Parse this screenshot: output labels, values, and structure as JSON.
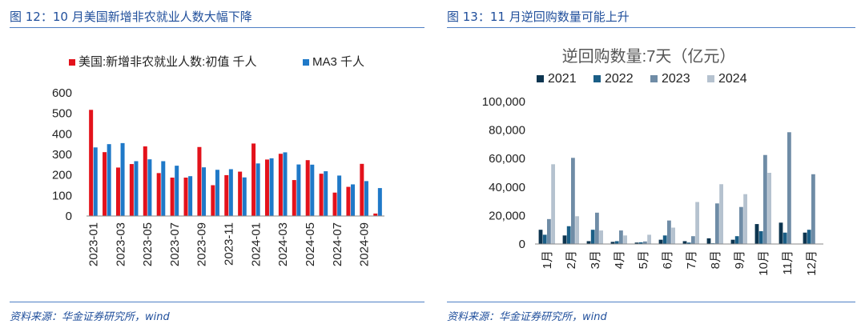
{
  "charts": [
    {
      "heading": "图 12：10 月美国新增非农就业人数大幅下降",
      "source": "资料来源：华金证券研究所，wind"
    },
    {
      "heading": "图 13：11 月逆回购数量可能上升",
      "source": "资料来源：华金证券研究所，wind"
    }
  ],
  "chart_data": [
    {
      "type": "bar",
      "title": "",
      "legend_position": "top",
      "grid": false,
      "ylim": [
        0,
        600
      ],
      "yticks": [
        "0",
        "100",
        "200",
        "300",
        "400",
        "500",
        "600"
      ],
      "categories": [
        "2023-01",
        "2023-02",
        "2023-03",
        "2023-04",
        "2023-05",
        "2023-06",
        "2023-07",
        "2023-08",
        "2023-09",
        "2023-10",
        "2023-11",
        "2023-12",
        "2024-01",
        "2024-02",
        "2024-03",
        "2024-04",
        "2024-05",
        "2024-06",
        "2024-07",
        "2024-08",
        "2024-09",
        "2024-10"
      ],
      "xtick_labels": [
        "2023-01",
        "2023-03",
        "2023-05",
        "2023-07",
        "2023-09",
        "2023-11",
        "2024-01",
        "2024-03",
        "2024-05",
        "2024-07",
        "2024-09"
      ],
      "series": [
        {
          "name": "美国:新增非农就业人数:初值 千人",
          "color": "#e3121b",
          "values": [
            517,
            311,
            236,
            253,
            339,
            209,
            187,
            187,
            336,
            150,
            199,
            216,
            353,
            275,
            303,
            175,
            272,
            206,
            114,
            142,
            254,
            12
          ]
        },
        {
          "name": "MA3 千人",
          "color": "#1f79c8",
          "values": [
            334,
            350,
            355,
            267,
            276,
            267,
            245,
            194,
            237,
            225,
            228,
            188,
            256,
            281,
            310,
            251,
            250,
            218,
            197,
            154,
            170,
            136
          ]
        }
      ]
    },
    {
      "type": "bar",
      "title": "逆回购数量:7天（亿元）",
      "legend_position": "top",
      "grid": false,
      "ylim": [
        0,
        100000
      ],
      "yticks": [
        "0",
        "20,000",
        "40,000",
        "60,000",
        "80,000",
        "100,000"
      ],
      "categories": [
        "1月",
        "2月",
        "3月",
        "4月",
        "5月",
        "6月",
        "7月",
        "8月",
        "9月",
        "10月",
        "11月",
        "12月"
      ],
      "series": [
        {
          "name": "2021",
          "color": "#0d3550",
          "values": [
            10000,
            6000,
            2000,
            1500,
            1000,
            3000,
            2000,
            4000,
            3000,
            14000,
            15000,
            8000
          ]
        },
        {
          "name": "2022",
          "color": "#1a5e86",
          "values": [
            6500,
            12500,
            10000,
            2000,
            1200,
            6000,
            1000,
            500,
            5500,
            9000,
            8000,
            10000
          ]
        },
        {
          "name": "2023",
          "color": "#6f8ca6",
          "values": [
            17500,
            60500,
            22000,
            9500,
            1800,
            16500,
            5500,
            28500,
            26000,
            62500,
            78500,
            49000
          ]
        },
        {
          "name": "2024",
          "color": "#b5c2cf",
          "values": [
            56000,
            19500,
            9500,
            6000,
            6500,
            11500,
            29500,
            42000,
            35000,
            50000,
            0,
            0
          ]
        }
      ]
    }
  ]
}
